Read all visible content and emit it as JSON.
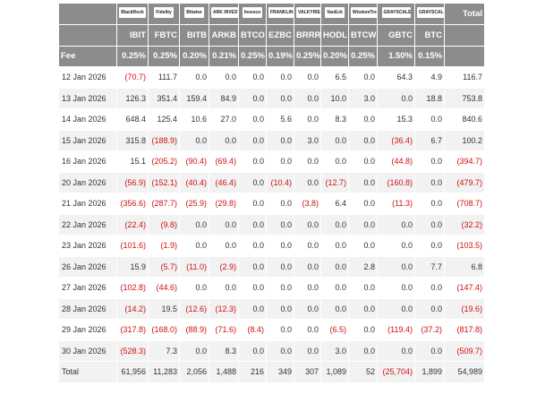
{
  "header": {
    "logos": [
      "BlackRock",
      "Fidelity",
      "Bitwise",
      "ARK INVEST",
      "Invesco",
      "FRANKLIN TEMPLETON",
      "VALKYRIE",
      "VanEck",
      "WisdomTree",
      "GRAYSCALE",
      "GRAYSCALE"
    ],
    "total_label": "Total",
    "tickers": [
      "IBIT",
      "FBTC",
      "BITB",
      "ARKB",
      "BTCO",
      "EZBC",
      "BRRR",
      "HODL",
      "BTCW",
      "GBTC",
      "BTC"
    ],
    "fee_label": "Fee",
    "fees": [
      "0.25%",
      "0.25%",
      "0.20%",
      "0.21%",
      "0.25%",
      "0.19%",
      "0.25%",
      "0.20%",
      "0.25%",
      "1.50%",
      "0.15%"
    ]
  },
  "rows": [
    {
      "date": "12 Jan 2026",
      "values": [
        "(70.7)",
        "111.7",
        "0.0",
        "0.0",
        "0.0",
        "0.0",
        "0.0",
        "6.5",
        "0.0",
        "64.3",
        "4.9",
        "116.7"
      ]
    },
    {
      "date": "13 Jan 2026",
      "values": [
        "126.3",
        "351.4",
        "159.4",
        "84.9",
        "0.0",
        "0.0",
        "0.0",
        "10.0",
        "3.0",
        "0.0",
        "18.8",
        "753.8"
      ]
    },
    {
      "date": "14 Jan 2026",
      "values": [
        "648.4",
        "125.4",
        "10.6",
        "27.0",
        "0.0",
        "5.6",
        "0.0",
        "8.3",
        "0.0",
        "15.3",
        "0.0",
        "840.6"
      ]
    },
    {
      "date": "15 Jan 2026",
      "values": [
        "315.8",
        "(188.9)",
        "0.0",
        "0.0",
        "0.0",
        "0.0",
        "3.0",
        "0.0",
        "0.0",
        "(36.4)",
        "6.7",
        "100.2"
      ]
    },
    {
      "date": "16 Jan 2026",
      "values": [
        "15.1",
        "(205.2)",
        "(90.4)",
        "(69.4)",
        "0.0",
        "0.0",
        "0.0",
        "0.0",
        "0.0",
        "(44.8)",
        "0.0",
        "(394.7)"
      ]
    },
    {
      "date": "20 Jan 2026",
      "values": [
        "(56.9)",
        "(152.1)",
        "(40.4)",
        "(46.4)",
        "0.0",
        "(10.4)",
        "0.0",
        "(12.7)",
        "0.0",
        "(160.8)",
        "0.0",
        "(479.7)"
      ]
    },
    {
      "date": "21 Jan 2026",
      "values": [
        "(356.6)",
        "(287.7)",
        "(25.9)",
        "(29.8)",
        "0.0",
        "0.0",
        "(3.8)",
        "6.4",
        "0.0",
        "(11.3)",
        "0.0",
        "(708.7)"
      ]
    },
    {
      "date": "22 Jan 2026",
      "values": [
        "(22.4)",
        "(9.8)",
        "0.0",
        "0.0",
        "0.0",
        "0.0",
        "0.0",
        "0.0",
        "0.0",
        "0.0",
        "0.0",
        "(32.2)"
      ]
    },
    {
      "date": "23 Jan 2026",
      "values": [
        "(101.6)",
        "(1.9)",
        "0.0",
        "0.0",
        "0.0",
        "0.0",
        "0.0",
        "0.0",
        "0.0",
        "0.0",
        "0.0",
        "(103.5)"
      ]
    },
    {
      "date": "26 Jan 2026",
      "values": [
        "15.9",
        "(5.7)",
        "(11.0)",
        "(2.9)",
        "0.0",
        "0.0",
        "0.0",
        "0.0",
        "2.8",
        "0.0",
        "7.7",
        "6.8"
      ]
    },
    {
      "date": "27 Jan 2026",
      "values": [
        "(102.8)",
        "(44.6)",
        "0.0",
        "0.0",
        "0.0",
        "0.0",
        "0.0",
        "0.0",
        "0.0",
        "0.0",
        "0.0",
        "(147.4)"
      ]
    },
    {
      "date": "28 Jan 2026",
      "values": [
        "(14.2)",
        "19.5",
        "(12.6)",
        "(12.3)",
        "0.0",
        "0.0",
        "0.0",
        "0.0",
        "0.0",
        "0.0",
        "0.0",
        "(19.6)"
      ]
    },
    {
      "date": "29 Jan 2026",
      "values": [
        "(317.8)",
        "(168.0)",
        "(88.9)",
        "(71.6)",
        "(8.4)",
        "0.0",
        "0.0",
        "(6.5)",
        "0.0",
        "(119.4)",
        "(37.2)",
        "(817.8)"
      ]
    },
    {
      "date": "30 Jan 2026",
      "values": [
        "(528.3)",
        "7.3",
        "0.0",
        "8.3",
        "0.0",
        "0.0",
        "0.0",
        "3.0",
        "0.0",
        "0.0",
        "0.0",
        "(509.7)"
      ]
    }
  ],
  "total": {
    "label": "Total",
    "values": [
      "61,956",
      "11,283",
      "2,056",
      "1,488",
      "216",
      "349",
      "307",
      "1,089",
      "52",
      "(25,704)",
      "1,899",
      "54,989"
    ]
  }
}
